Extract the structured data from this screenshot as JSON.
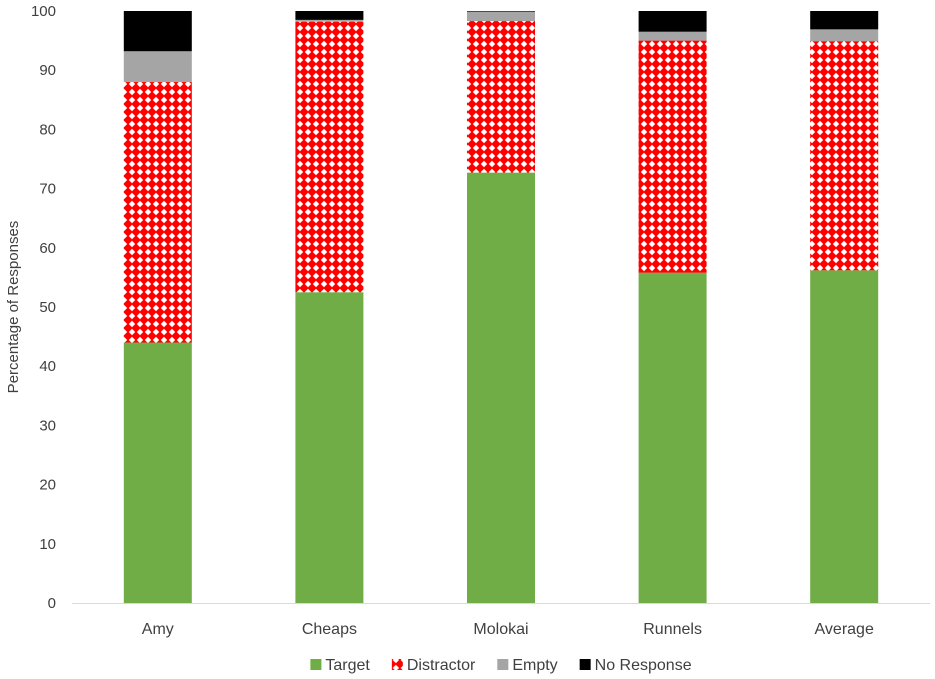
{
  "chart_data": {
    "type": "bar",
    "stacked": true,
    "title": "",
    "xlabel": "",
    "ylabel": "Percentage of Responses",
    "ylim": [
      0,
      100
    ],
    "yticks": [
      0,
      10,
      20,
      30,
      40,
      50,
      60,
      70,
      80,
      90,
      100
    ],
    "grid": false,
    "legend_position": "bottom",
    "categories": [
      "Amy",
      "Cheaps",
      "Molokai",
      "Runnels",
      "Average"
    ],
    "series": [
      {
        "name": "Target",
        "color": "#70ad47",
        "pattern": "solid",
        "values": [
          44.0,
          52.5,
          72.7,
          55.8,
          56.2
        ]
      },
      {
        "name": "Distractor",
        "color": "#ff0000",
        "pattern": "diamond-lattice",
        "values": [
          44.0,
          45.7,
          25.6,
          39.2,
          38.7
        ]
      },
      {
        "name": "Empty",
        "color": "#a5a5a5",
        "pattern": "solid",
        "values": [
          5.2,
          0.3,
          1.6,
          1.5,
          2.0
        ]
      },
      {
        "name": "No Response",
        "color": "#000000",
        "pattern": "solid",
        "values": [
          6.8,
          1.5,
          0.1,
          3.5,
          3.1
        ]
      }
    ]
  }
}
